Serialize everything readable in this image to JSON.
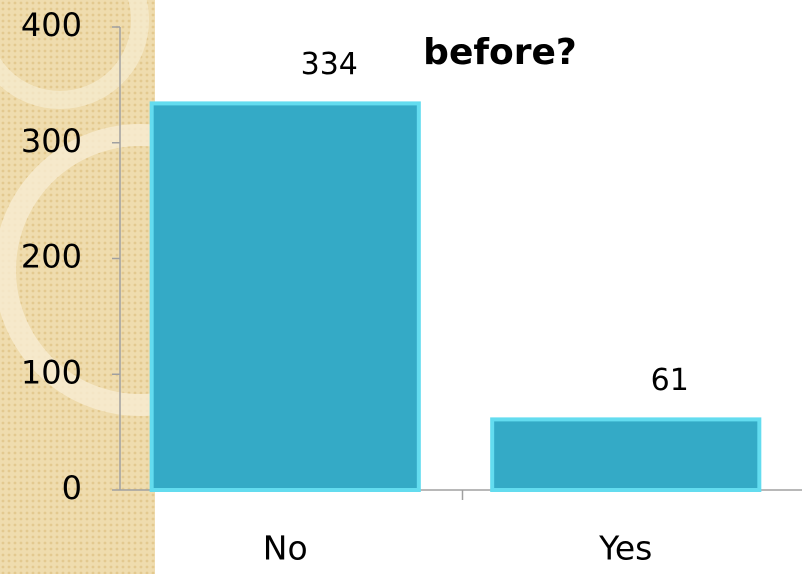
{
  "chart_data": {
    "type": "bar",
    "title": "before?",
    "categories": [
      "No",
      "Yes"
    ],
    "values": [
      334,
      61
    ],
    "color": "#34aac6",
    "ylim": [
      0,
      400
    ],
    "yticks": [
      0,
      100,
      200,
      300,
      400
    ],
    "grid": false
  }
}
